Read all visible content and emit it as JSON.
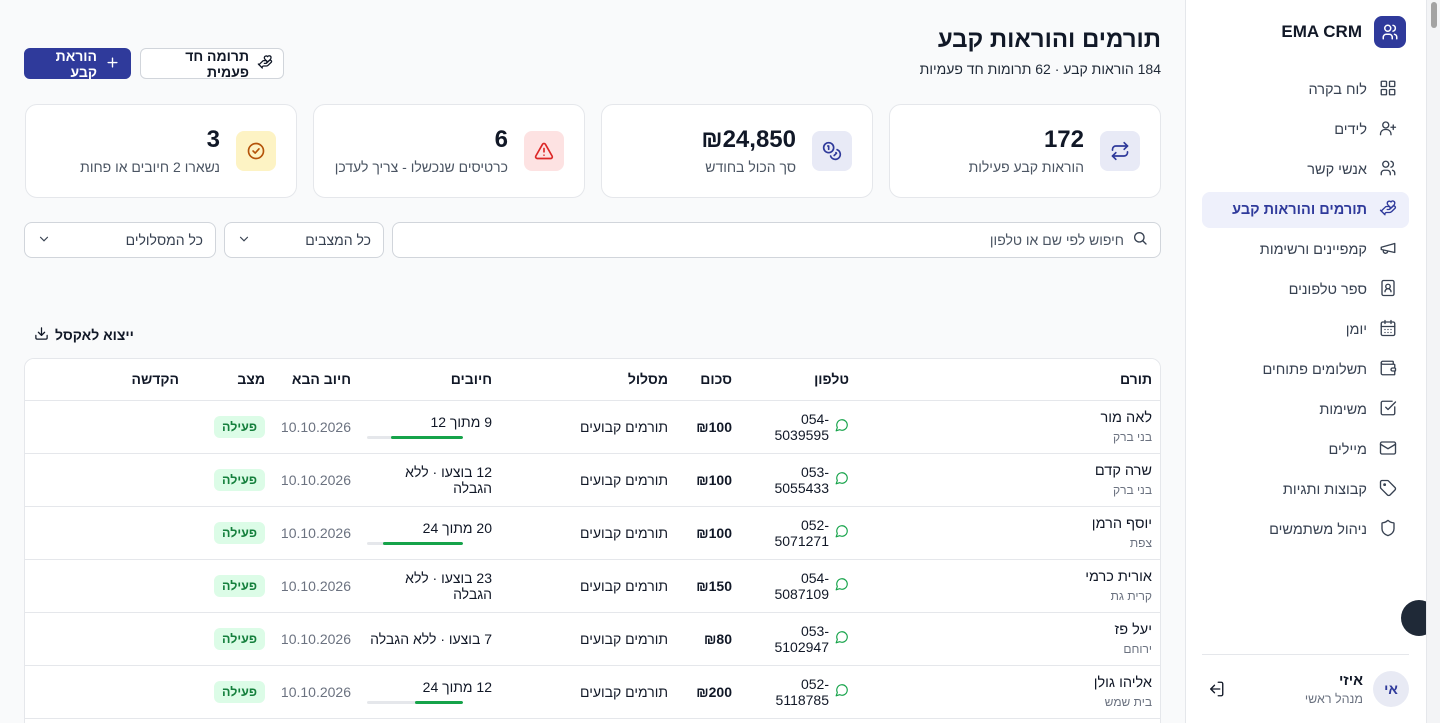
{
  "app": {
    "name": "EMA CRM"
  },
  "sidebar": {
    "items": [
      {
        "label": "לוח בקרה",
        "icon": "dashboard-icon",
        "active": false
      },
      {
        "label": "לידים",
        "icon": "user-plus-icon",
        "active": false
      },
      {
        "label": "אנשי קשר",
        "icon": "users-icon",
        "active": false
      },
      {
        "label": "תורמים והוראות קבע",
        "icon": "hand-heart-icon",
        "active": true
      },
      {
        "label": "קמפיינים ורשימות",
        "icon": "megaphone-icon",
        "active": false
      },
      {
        "label": "ספר טלפונים",
        "icon": "contact-book-icon",
        "active": false
      },
      {
        "label": "יומן",
        "icon": "calendar-icon",
        "active": false
      },
      {
        "label": "תשלומים פתוחים",
        "icon": "wallet-icon",
        "active": false
      },
      {
        "label": "משימות",
        "icon": "checkbox-icon",
        "active": false
      },
      {
        "label": "מיילים",
        "icon": "mail-icon",
        "active": false
      },
      {
        "label": "קבוצות ותגיות",
        "icon": "tag-icon",
        "active": false
      },
      {
        "label": "ניהול משתמשים",
        "icon": "shield-icon",
        "active": false
      }
    ],
    "user": {
      "initials": "אי",
      "name": "איזי",
      "role": "מנהל ראשי"
    }
  },
  "header": {
    "title": "תורמים והוראות קבע",
    "subtitle": "184 הוראות קבע · 62 תרומות חד פעמיות",
    "primary_button": "הוראת קבע",
    "secondary_button": "תרומה חד פעמית"
  },
  "stats": [
    {
      "value": "172",
      "label": "הוראות קבע פעילות",
      "icon": "repeat-icon",
      "icon_bg": "#e8eaf6",
      "icon_color": "#2f3a9b"
    },
    {
      "value": "₪24,850",
      "label": "סך הכול בחודש",
      "icon": "coins-icon",
      "icon_bg": "#e8eaf6",
      "icon_color": "#2f3a9b"
    },
    {
      "value": "6",
      "label": "כרטיסים שנכשלו - צריך לעדכן",
      "icon": "alert-triangle-icon",
      "icon_bg": "#fde2e2",
      "icon_color": "#dc2626"
    },
    {
      "value": "3",
      "label": "נשארו 2 חיובים או פחות",
      "icon": "check-circle-icon",
      "icon_bg": "#fdf3c4",
      "icon_color": "#b45309"
    }
  ],
  "filters": {
    "search_placeholder": "חיפוש לפי שם או טלפון",
    "status_select": "כל המצבים",
    "track_select": "כל המסלולים"
  },
  "export_label": "ייצוא לאקסל",
  "table": {
    "headers": [
      "תורם",
      "טלפון",
      "סכום",
      "מסלול",
      "חיובים",
      "חיוב הבא",
      "מצב",
      "הקדשה"
    ],
    "rows": [
      {
        "name": "לאה מור",
        "city": "בני ברק",
        "phone": "054-5039595",
        "amount": "₪100",
        "track": "תורמים קבועים",
        "charges": "9 מתוך 12",
        "progress": 0.75,
        "next": "10.10.2026",
        "status": "פעילה"
      },
      {
        "name": "שרה קדם",
        "city": "בני ברק",
        "phone": "053-5055433",
        "amount": "₪100",
        "track": "תורמים קבועים",
        "charges": "12 בוצעו · ללא הגבלה",
        "progress": null,
        "next": "10.10.2026",
        "status": "פעילה"
      },
      {
        "name": "יוסף הרמן",
        "city": "צפת",
        "phone": "052-5071271",
        "amount": "₪100",
        "track": "תורמים קבועים",
        "charges": "20 מתוך 24",
        "progress": 0.833,
        "next": "10.10.2026",
        "status": "פעילה"
      },
      {
        "name": "אורית כרמי",
        "city": "קרית גת",
        "phone": "054-5087109",
        "amount": "₪150",
        "track": "תורמים קבועים",
        "charges": "23 בוצעו · ללא הגבלה",
        "progress": null,
        "next": "10.10.2026",
        "status": "פעילה"
      },
      {
        "name": "יעל פז",
        "city": "ירוחם",
        "phone": "053-5102947",
        "amount": "₪80",
        "track": "תורמים קבועים",
        "charges": "7 בוצעו · ללא הגבלה",
        "progress": null,
        "next": "10.10.2026",
        "status": "פעילה"
      },
      {
        "name": "אליהו גולן",
        "city": "בית שמש",
        "phone": "052-5118785",
        "amount": "₪200",
        "track": "תורמים קבועים",
        "charges": "12 מתוך 24",
        "progress": 0.5,
        "next": "10.10.2026",
        "status": "פעילה"
      }
    ]
  },
  "colors": {
    "accent": "#2f3a9b",
    "success": "#16a34a",
    "badge_bg": "#dcfce7"
  }
}
